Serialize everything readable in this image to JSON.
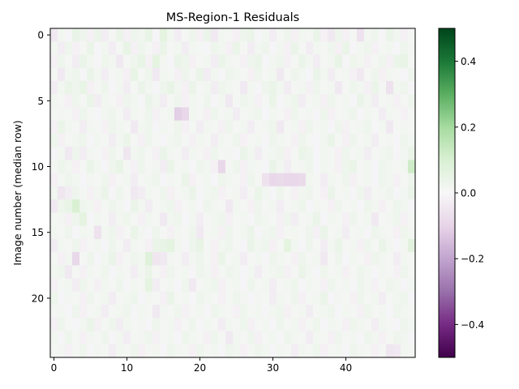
{
  "chart_data": {
    "type": "heatmap",
    "title": "MS-Region-1 Residuals",
    "xlabel": "",
    "ylabel": "Image number (median row)",
    "n_cols": 50,
    "n_rows": 25,
    "xlim": [
      -0.5,
      49.5
    ],
    "ylim": [
      24.5,
      -0.5
    ],
    "x_ticks": [
      0,
      10,
      20,
      30,
      40
    ],
    "y_ticks": [
      0,
      5,
      10,
      15,
      20
    ],
    "colormap": "PRGn",
    "vmin": -0.5,
    "vmax": 0.5,
    "colorbar_ticks": [
      -0.4,
      -0.2,
      0.0,
      0.2,
      0.4
    ],
    "colorbar_tick_labels": [
      "−0.4",
      "−0.2",
      "0.0",
      "0.2",
      "0.4"
    ],
    "cmap_stops": [
      [
        0.0,
        "#40004b"
      ],
      [
        0.1,
        "#762a83"
      ],
      [
        0.2,
        "#9970ab"
      ],
      [
        0.3,
        "#c2a5cf"
      ],
      [
        0.4,
        "#e7d4e8"
      ],
      [
        0.5,
        "#f7f7f7"
      ],
      [
        0.6,
        "#d9f0d3"
      ],
      [
        0.7,
        "#a6dba0"
      ],
      [
        0.8,
        "#5aae61"
      ],
      [
        0.9,
        "#1b7837"
      ],
      [
        1.0,
        "#00441b"
      ]
    ],
    "values_note_free": true,
    "values": [
      [
        -0.04,
        0.02,
        -0.01,
        0.05,
        0.03,
        -0.02,
        0.04,
        -0.03,
        0.01,
        0.04,
        -0.02,
        0.03,
        0.02,
        0.05,
        -0.01,
        0.06,
        0.02,
        -0.03,
        0.01,
        0.03,
        -0.02,
        0.04,
        -0.04,
        0.02,
        0.01,
        -0.02,
        0.03,
        0.04,
        -0.01,
        0.02,
        -0.03,
        0.01,
        0.03,
        -0.02,
        0.02,
        0.01,
        0.04,
        -0.02,
        -0.04,
        0.03,
        -0.02,
        0.01,
        -0.06,
        0.02,
        0.03,
        -0.01,
        0.04,
        0.02,
        -0.02,
        0.01
      ],
      [
        0.02,
        -0.03,
        0.03,
        -0.02,
        0.01,
        0.04,
        -0.01,
        0.02,
        -0.03,
        0.01,
        0.05,
        -0.02,
        0.03,
        0.01,
        -0.02,
        0.04,
        0.01,
        0.02,
        -0.03,
        0.02,
        0.01,
        -0.01,
        0.03,
        0.02,
        -0.02,
        0.04,
        0.01,
        -0.03,
        0.02,
        0.03,
        -0.01,
        0.02,
        -0.02,
        0.04,
        0.01,
        -0.03,
        0.02,
        0.01,
        0.03,
        -0.02,
        0.04,
        -0.01,
        0.02,
        0.03,
        -0.02,
        0.01,
        0.02,
        -0.01,
        0.03,
        0.02
      ],
      [
        -0.02,
        0.03,
        0.01,
        -0.03,
        0.04,
        0.02,
        -0.01,
        0.03,
        0.02,
        -0.04,
        0.01,
        0.03,
        0.05,
        -0.02,
        0.06,
        0.02,
        -0.01,
        0.04,
        0.03,
        -0.02,
        0.01,
        0.02,
        -0.03,
        0.04,
        0.02,
        0.01,
        -0.02,
        0.03,
        0.04,
        -0.01,
        0.02,
        0.03,
        -0.02,
        0.01,
        0.04,
        0.02,
        -0.03,
        0.01,
        0.02,
        0.05,
        -0.01,
        0.03,
        0.02,
        -0.02,
        0.01,
        0.03,
        -0.02,
        0.04,
        0.05,
        0.01
      ],
      [
        0.01,
        -0.04,
        0.02,
        0.03,
        -0.01,
        0.04,
        0.02,
        -0.03,
        0.01,
        0.02,
        -0.02,
        0.05,
        0.01,
        0.03,
        -0.04,
        0.02,
        0.01,
        -0.02,
        0.03,
        0.01,
        0.04,
        -0.03,
        0.02,
        -0.01,
        0.03,
        0.02,
        0.01,
        -0.02,
        0.03,
        0.01,
        0.02,
        -0.04,
        0.01,
        0.03,
        0.02,
        -0.01,
        0.04,
        0.02,
        -0.03,
        0.01,
        0.02,
        -0.02,
        -0.04,
        0.01,
        0.03,
        -0.02,
        0.02,
        0.01,
        -0.01,
        0.03
      ],
      [
        -0.03,
        0.02,
        0.04,
        0.03,
        0.05,
        -0.02,
        0.01,
        0.03,
        -0.01,
        0.02,
        -0.03,
        0.01,
        0.04,
        0.02,
        -0.01,
        0.03,
        0.05,
        0.02,
        -0.02,
        0.04,
        0.01,
        0.02,
        -0.03,
        0.03,
        0.02,
        0.01,
        -0.04,
        0.02,
        -0.01,
        0.03,
        0.04,
        0.02,
        -0.03,
        0.01,
        0.02,
        -0.02,
        0.03,
        0.01,
        0.02,
        -0.04,
        0.01,
        0.03,
        0.02,
        -0.02,
        0.04,
        0.01,
        -0.06,
        0.02,
        0.03,
        -0.01
      ],
      [
        0.02,
        0.01,
        -0.02,
        0.03,
        0.01,
        0.04,
        -0.03,
        0.02,
        0.01,
        -0.02,
        0.03,
        0.02,
        -0.01,
        0.04,
        0.02,
        -0.03,
        0.01,
        0.03,
        -0.02,
        0.02,
        0.01,
        0.03,
        -0.01,
        0.02,
        -0.04,
        0.01,
        0.03,
        0.02,
        -0.02,
        0.01,
        0.04,
        -0.01,
        0.02,
        0.03,
        -0.03,
        0.01,
        0.02,
        -0.02,
        0.03,
        0.01,
        0.02,
        -0.01,
        0.04,
        0.02,
        -0.03,
        0.01,
        0.02,
        -0.02,
        0.01,
        0.03
      ],
      [
        0.01,
        0.02,
        0.01,
        -0.02,
        0.03,
        0.01,
        -0.01,
        0.02,
        0.03,
        0.01,
        -0.03,
        0.02,
        0.01,
        0.03,
        -0.02,
        0.01,
        0.02,
        -0.11,
        -0.09,
        0.02,
        0.01,
        -0.02,
        0.03,
        0.01,
        0.02,
        -0.03,
        0.01,
        0.02,
        0.03,
        -0.01,
        0.02,
        0.01,
        -0.02,
        0.03,
        0.01,
        0.02,
        -0.01,
        0.03,
        -0.02,
        0.01,
        0.02,
        0.03,
        -0.01,
        0.02,
        0.01,
        -0.03,
        0.02,
        0.01,
        -0.02,
        0.01
      ],
      [
        -0.02,
        0.04,
        0.02,
        0.01,
        -0.03,
        0.02,
        0.01,
        -0.02,
        0.03,
        0.02,
        0.01,
        -0.04,
        0.02,
        0.03,
        -0.01,
        0.02,
        0.01,
        0.03,
        -0.02,
        0.01,
        -0.03,
        0.02,
        0.01,
        -0.02,
        0.03,
        0.01,
        0.02,
        -0.03,
        0.01,
        0.02,
        0.03,
        -0.04,
        0.01,
        0.02,
        -0.02,
        0.03,
        0.01,
        0.02,
        -0.01,
        0.03,
        -0.02,
        0.01,
        0.02,
        0.03,
        -0.01,
        0.02,
        -0.04,
        0.01,
        0.02,
        0.01
      ],
      [
        0.03,
        -0.02,
        0.01,
        0.02,
        0.03,
        -0.01,
        0.02,
        0.01,
        -0.03,
        0.02,
        0.04,
        0.01,
        -0.02,
        0.03,
        0.01,
        -0.01,
        0.02,
        0.03,
        0.01,
        -0.02,
        0.02,
        0.01,
        -0.03,
        0.02,
        0.01,
        0.03,
        -0.02,
        0.01,
        0.02,
        -0.01,
        0.03,
        0.02,
        0.01,
        -0.02,
        0.03,
        0.01,
        -0.01,
        0.02,
        0.04,
        0.01,
        -0.02,
        0.03,
        0.01,
        0.02,
        -0.03,
        0.01,
        0.02,
        -0.01,
        0.03,
        0.02
      ],
      [
        -0.01,
        0.02,
        -0.04,
        0.03,
        -0.03,
        0.02,
        0.01,
        -0.02,
        0.03,
        0.01,
        -0.05,
        0.02,
        0.03,
        0.01,
        -0.02,
        0.04,
        0.02,
        0.01,
        -0.03,
        0.02,
        0.01,
        -0.02,
        0.03,
        0.01,
        0.02,
        -0.01,
        0.04,
        0.02,
        -0.03,
        0.01,
        0.02,
        0.03,
        -0.02,
        0.01,
        0.04,
        0.03,
        -0.01,
        0.02,
        0.01,
        -0.02,
        0.03,
        0.01,
        0.02,
        -0.03,
        0.01,
        0.02,
        0.03,
        -0.01,
        0.02,
        0.04
      ],
      [
        0.01,
        0.03,
        0.02,
        -0.02,
        0.01,
        0.04,
        0.02,
        -0.01,
        0.03,
        0.05,
        0.01,
        -0.02,
        0.03,
        0.01,
        0.02,
        -0.03,
        0.04,
        0.01,
        0.02,
        -0.01,
        0.03,
        0.02,
        -0.02,
        -0.09,
        0.01,
        0.03,
        -0.02,
        0.02,
        0.01,
        -0.01,
        0.04,
        0.02,
        -0.03,
        0.01,
        0.02,
        0.03,
        -0.01,
        0.02,
        0.01,
        -0.02,
        0.03,
        0.04,
        0.01,
        0.02,
        -0.01,
        0.03,
        0.02,
        0.01,
        0.02,
        0.12
      ],
      [
        -0.02,
        0.01,
        0.03,
        0.02,
        -0.01,
        0.02,
        0.01,
        0.03,
        -0.02,
        0.01,
        0.02,
        -0.03,
        0.01,
        0.02,
        0.03,
        -0.01,
        0.02,
        0.01,
        0.04,
        -0.02,
        0.01,
        0.02,
        -0.01,
        0.03,
        0.02,
        0.01,
        -0.02,
        0.03,
        0.01,
        -0.06,
        -0.09,
        -0.08,
        -0.09,
        -0.09,
        -0.08,
        0.02,
        0.01,
        -0.03,
        0.02,
        0.01,
        0.03,
        -0.02,
        0.01,
        0.02,
        -0.01,
        0.03,
        0.02,
        -0.02,
        0.01,
        0.03
      ],
      [
        0.02,
        -0.05,
        -0.03,
        0.03,
        0.01,
        -0.02,
        0.02,
        0.04,
        -0.01,
        0.03,
        0.01,
        -0.04,
        -0.03,
        0.02,
        0.01,
        0.03,
        -0.02,
        0.01,
        0.02,
        0.04,
        -0.01,
        0.02,
        0.03,
        -0.02,
        0.01,
        0.02,
        -0.03,
        0.01,
        0.04,
        0.02,
        -0.01,
        0.03,
        0.01,
        -0.02,
        0.02,
        0.03,
        0.01,
        -0.02,
        0.04,
        0.01,
        0.02,
        -0.01,
        0.03,
        -0.03,
        0.01,
        0.02,
        0.03,
        -0.01,
        0.02,
        0.04
      ],
      [
        -0.04,
        0.03,
        0.05,
        0.1,
        0.03,
        0.02,
        -0.02,
        0.01,
        0.03,
        0.02,
        -0.01,
        0.04,
        0.02,
        -0.03,
        0.01,
        0.02,
        0.03,
        -0.02,
        0.01,
        0.02,
        -0.01,
        0.03,
        0.02,
        0.01,
        -0.04,
        0.02,
        0.01,
        -0.02,
        0.03,
        0.01,
        0.02,
        -0.03,
        0.01,
        0.02,
        0.03,
        -0.01,
        0.02,
        0.01,
        -0.02,
        0.03,
        0.01,
        0.02,
        -0.01,
        0.03,
        0.02,
        -0.02,
        0.01,
        0.03,
        0.02,
        -0.01
      ],
      [
        0.01,
        0.02,
        -0.02,
        0.03,
        0.06,
        -0.01,
        0.02,
        0.01,
        -0.03,
        0.02,
        0.03,
        0.01,
        -0.02,
        0.02,
        0.01,
        -0.04,
        0.02,
        0.03,
        -0.01,
        0.02,
        -0.03,
        0.01,
        0.02,
        0.03,
        -0.02,
        0.01,
        0.02,
        -0.01,
        0.03,
        0.02,
        0.01,
        -0.02,
        0.03,
        -0.03,
        0.01,
        0.02,
        0.04,
        -0.01,
        0.02,
        0.01,
        -0.02,
        0.03,
        0.01,
        0.02,
        -0.04,
        0.01,
        0.02,
        0.03,
        -0.02,
        0.01
      ],
      [
        0.02,
        0.01,
        0.03,
        -0.01,
        0.02,
        0.01,
        -0.06,
        0.02,
        0.03,
        -0.02,
        0.01,
        0.04,
        0.02,
        -0.01,
        0.03,
        0.01,
        -0.02,
        0.02,
        0.01,
        0.03,
        -0.04,
        0.01,
        0.02,
        -0.02,
        0.03,
        0.01,
        0.02,
        0.04,
        -0.01,
        0.02,
        0.03,
        -0.02,
        0.01,
        0.02,
        0.01,
        0.03,
        -0.02,
        0.04,
        0.01,
        0.02,
        -0.03,
        0.01,
        0.02,
        -0.01,
        0.03,
        0.02,
        0.01,
        -0.02,
        0.03,
        0.02
      ],
      [
        -0.03,
        0.02,
        0.01,
        0.03,
        -0.02,
        0.01,
        0.02,
        -0.01,
        0.03,
        0.01,
        -0.03,
        0.02,
        0.01,
        -0.02,
        0.04,
        0.05,
        0.06,
        0.02,
        -0.01,
        0.03,
        0.05,
        0.01,
        -0.02,
        0.02,
        0.03,
        0.01,
        -0.01,
        0.04,
        0.02,
        0.03,
        -0.02,
        0.01,
        0.06,
        0.02,
        -0.01,
        0.03,
        0.01,
        -0.03,
        0.02,
        0.04,
        0.01,
        0.02,
        -0.02,
        0.03,
        0.01,
        0.04,
        0.02,
        -0.01,
        0.02,
        0.07
      ],
      [
        0.01,
        -0.02,
        0.02,
        -0.09,
        0.01,
        0.03,
        -0.01,
        0.02,
        0.04,
        -0.02,
        0.01,
        0.03,
        0.02,
        0.08,
        -0.05,
        -0.04,
        0.02,
        0.01,
        -0.03,
        0.02,
        0.03,
        0.01,
        -0.02,
        0.04,
        0.01,
        0.02,
        -0.03,
        0.01,
        0.02,
        -0.01,
        0.03,
        0.02,
        0.01,
        -0.02,
        0.03,
        0.01,
        0.02,
        -0.04,
        0.01,
        0.03,
        -0.01,
        0.02,
        0.01,
        -0.02,
        0.03,
        0.02,
        0.01,
        -0.03,
        0.02,
        0.01
      ],
      [
        0.02,
        0.03,
        -0.04,
        0.01,
        -0.02,
        0.02,
        0.01,
        0.03,
        -0.01,
        0.02,
        0.01,
        -0.03,
        0.02,
        0.04,
        0.01,
        -0.02,
        0.03,
        0.01,
        0.02,
        -0.01,
        0.03,
        0.02,
        -0.02,
        0.01,
        0.03,
        0.02,
        -0.01,
        0.02,
        -0.03,
        0.01,
        0.02,
        0.03,
        -0.02,
        0.01,
        0.04,
        0.02,
        -0.01,
        0.03,
        0.01,
        0.02,
        -0.02,
        0.01,
        0.03,
        0.02,
        -0.01,
        0.02,
        0.01,
        -0.02,
        0.03,
        0.01
      ],
      [
        -0.02,
        0.01,
        0.02,
        -0.03,
        0.03,
        0.01,
        -0.02,
        0.02,
        0.01,
        0.03,
        -0.01,
        0.02,
        0.01,
        0.06,
        -0.03,
        0.01,
        0.02,
        -0.01,
        0.03,
        -0.04,
        0.01,
        0.02,
        0.03,
        -0.02,
        0.01,
        0.02,
        -0.01,
        0.03,
        0.01,
        0.02,
        -0.03,
        0.01,
        0.02,
        0.03,
        -0.01,
        0.02,
        0.01,
        -0.02,
        0.03,
        0.01,
        0.02,
        -0.01,
        0.03,
        0.02,
        -0.02,
        0.01,
        0.03,
        0.02,
        -0.01,
        0.02
      ],
      [
        0.03,
        -0.01,
        0.02,
        0.01,
        -0.02,
        0.03,
        0.01,
        0.02,
        -0.03,
        0.01,
        0.02,
        0.03,
        -0.01,
        0.02,
        0.01,
        -0.02,
        0.04,
        0.01,
        0.02,
        -0.01,
        0.03,
        0.02,
        0.01,
        -0.02,
        0.01,
        0.03,
        0.02,
        -0.01,
        0.02,
        0.01,
        -0.03,
        0.02,
        0.01,
        0.03,
        -0.02,
        0.01,
        0.02,
        0.04,
        -0.01,
        0.02,
        0.01,
        -0.02,
        0.03,
        0.01,
        0.02,
        -0.03,
        0.01,
        0.02,
        0.03,
        -0.01
      ],
      [
        0.01,
        0.02,
        -0.01,
        0.03,
        -0.02,
        0.01,
        0.02,
        -0.03,
        0.01,
        0.02,
        0.03,
        -0.01,
        0.02,
        0.01,
        -0.04,
        0.02,
        0.01,
        0.03,
        -0.02,
        0.01,
        0.02,
        -0.01,
        0.03,
        0.02,
        0.01,
        -0.02,
        0.03,
        0.01,
        0.02,
        -0.01,
        0.02,
        0.03,
        -0.02,
        0.01,
        0.02,
        -0.03,
        0.01,
        0.02,
        0.03,
        -0.01,
        0.02,
        0.01,
        -0.02,
        0.03,
        0.01,
        0.02,
        -0.01,
        0.03,
        0.02,
        0.01
      ],
      [
        -0.02,
        0.03,
        0.01,
        -0.01,
        0.02,
        0.04,
        -0.02,
        0.01,
        0.03,
        -0.03,
        0.02,
        0.01,
        0.02,
        -0.01,
        0.03,
        0.01,
        0.02,
        -0.02,
        0.01,
        0.03,
        -0.01,
        0.02,
        0.01,
        -0.03,
        0.02,
        0.01,
        0.03,
        -0.02,
        0.01,
        0.02,
        -0.01,
        0.03,
        0.01,
        0.02,
        -0.02,
        0.01,
        0.03,
        -0.01,
        0.02,
        0.01,
        -0.02,
        0.03,
        0.02,
        0.01,
        -0.03,
        0.02,
        0.01,
        -0.01,
        0.03,
        0.02
      ],
      [
        0.02,
        -0.01,
        0.03,
        0.01,
        -0.02,
        0.02,
        0.01,
        0.03,
        -0.01,
        0.02,
        -0.03,
        0.01,
        0.02,
        0.03,
        -0.02,
        0.01,
        0.02,
        -0.01,
        0.03,
        0.02,
        0.01,
        -0.02,
        0.03,
        0.01,
        -0.04,
        0.02,
        0.01,
        0.03,
        -0.02,
        0.01,
        0.02,
        -0.01,
        0.03,
        0.02,
        0.01,
        -0.03,
        0.02,
        0.01,
        -0.02,
        0.03,
        0.01,
        0.02,
        -0.01,
        0.03,
        0.02,
        -0.02,
        0.01,
        0.03,
        0.02,
        -0.01
      ],
      [
        0.01,
        0.02,
        -0.02,
        0.01,
        0.03,
        -0.01,
        0.02,
        0.01,
        -0.03,
        0.02,
        0.01,
        0.03,
        -0.02,
        0.01,
        0.02,
        -0.01,
        0.03,
        0.02,
        0.01,
        -0.02,
        0.03,
        0.01,
        0.02,
        -0.01,
        0.03,
        0.02,
        -0.02,
        0.01,
        0.03,
        0.02,
        -0.01,
        0.02,
        0.01,
        -0.03,
        0.02,
        0.01,
        0.03,
        -0.02,
        0.01,
        0.02,
        -0.01,
        0.03,
        0.02,
        0.01,
        -0.02,
        0.01,
        -0.05,
        -0.04,
        0.02,
        0.01
      ]
    ]
  }
}
